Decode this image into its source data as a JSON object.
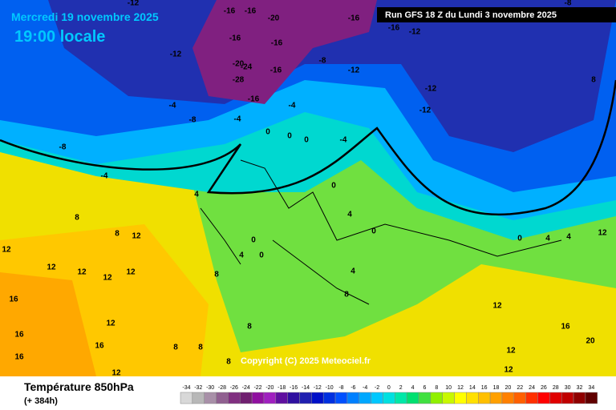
{
  "header": {
    "date": "Mercredi 19 novembre 2025",
    "time": "19:00 locale",
    "run": "Run GFS 18 Z du Lundi 3 novembre 2025"
  },
  "copyright": "Copyright (C) 2025 Meteociel.fr",
  "footer": {
    "field": "Température 850hPa",
    "lead": "(+ 384h)"
  },
  "legend": {
    "ticks": [
      -34,
      -32,
      -30,
      -28,
      -26,
      -24,
      -22,
      -20,
      -18,
      -16,
      -14,
      -12,
      -10,
      -8,
      -6,
      -4,
      -2,
      0,
      2,
      4,
      6,
      8,
      10,
      12,
      14,
      16,
      18,
      20,
      22,
      24,
      26,
      28,
      30,
      32,
      34
    ],
    "colors": [
      "#d8d8d8",
      "#b8b8b8",
      "#a890a8",
      "#906090",
      "#803080",
      "#702070",
      "#9010a0",
      "#a020c0",
      "#6010a0",
      "#3010a0",
      "#2020b0",
      "#0010c8",
      "#0030e0",
      "#0050ff",
      "#0080ff",
      "#00a8ff",
      "#00c8ff",
      "#00e0e0",
      "#00e8a8",
      "#00e070",
      "#40e040",
      "#90f000",
      "#c8f800",
      "#ffff00",
      "#ffe000",
      "#ffc000",
      "#ffa000",
      "#ff8000",
      "#ff6000",
      "#ff3000",
      "#ff0000",
      "#e00000",
      "#c00000",
      "#900000",
      "#600000"
    ]
  },
  "contour_labels": [
    -12,
    -16,
    -16,
    -20,
    -16,
    -16,
    -12,
    -12,
    -16,
    -16,
    -20,
    -24,
    -28,
    -16,
    -8,
    -12,
    -12,
    -12,
    -16,
    -4,
    -4,
    -8,
    -4,
    -8,
    -4,
    0,
    0,
    0,
    -4,
    0,
    4,
    8,
    8,
    12,
    12,
    12,
    12,
    12,
    12,
    16,
    16,
    16,
    16,
    12,
    8,
    8,
    8,
    12,
    4,
    0,
    0,
    4,
    0,
    4,
    8,
    8,
    8,
    12,
    12,
    12,
    16,
    20,
    12,
    4,
    0,
    4,
    8,
    -8
  ]
}
